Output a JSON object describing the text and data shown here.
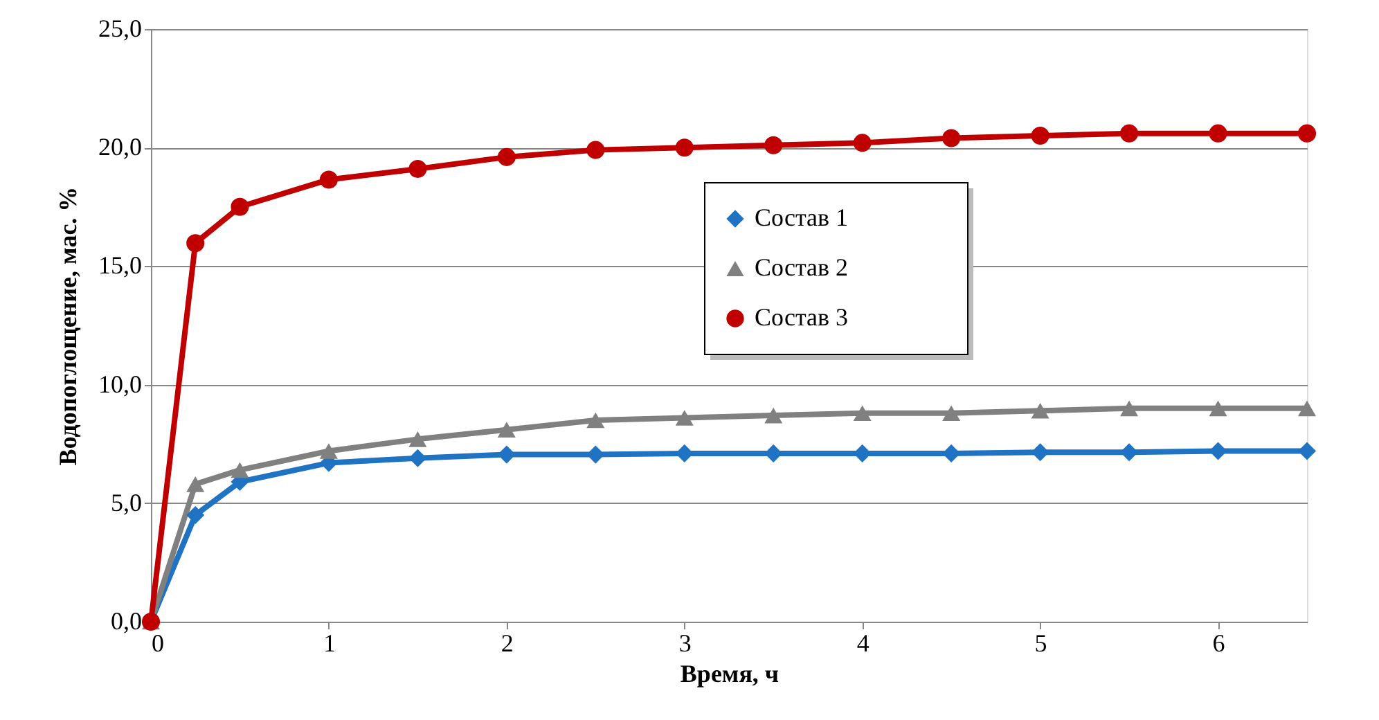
{
  "chart_data": {
    "type": "line",
    "xlabel": "Время, ч",
    "ylabel": "Водопоглощение, мас. %",
    "x": [
      0,
      0.25,
      0.5,
      1,
      1.5,
      2,
      2.5,
      3,
      3.5,
      4,
      4.5,
      5,
      5.5,
      6,
      6.5
    ],
    "xlim": [
      0,
      6.5
    ],
    "xticks": [
      0,
      1,
      2,
      3,
      4,
      5,
      6
    ],
    "ylim": [
      0,
      25
    ],
    "yticks": [
      {
        "value": 0,
        "label": "0,0"
      },
      {
        "value": 5,
        "label": "5,0"
      },
      {
        "value": 10,
        "label": "10,0"
      },
      {
        "value": 15,
        "label": "15,0"
      },
      {
        "value": 20,
        "label": "20,0"
      },
      {
        "value": 25,
        "label": "25,0"
      }
    ],
    "grid": "y",
    "legend": "right",
    "series": [
      {
        "name": "Состав 1",
        "color": "#1f73c2",
        "marker": "diamond",
        "values": [
          0,
          4.5,
          5.9,
          6.7,
          6.9,
          7.05,
          7.05,
          7.1,
          7.1,
          7.1,
          7.1,
          7.15,
          7.15,
          7.2,
          7.2
        ]
      },
      {
        "name": "Состав 2",
        "color": "#808080",
        "marker": "triangle",
        "values": [
          0,
          5.8,
          6.4,
          7.2,
          7.7,
          8.1,
          8.5,
          8.6,
          8.7,
          8.8,
          8.8,
          8.9,
          9.0,
          9.0,
          9.0
        ]
      },
      {
        "name": "Состав 3",
        "color": "#c00000",
        "marker": "circle",
        "values": [
          0,
          15.97,
          17.5,
          18.65,
          19.1,
          19.6,
          19.9,
          20.0,
          20.1,
          20.2,
          20.4,
          20.5,
          20.6,
          20.6,
          20.6
        ]
      }
    ]
  }
}
